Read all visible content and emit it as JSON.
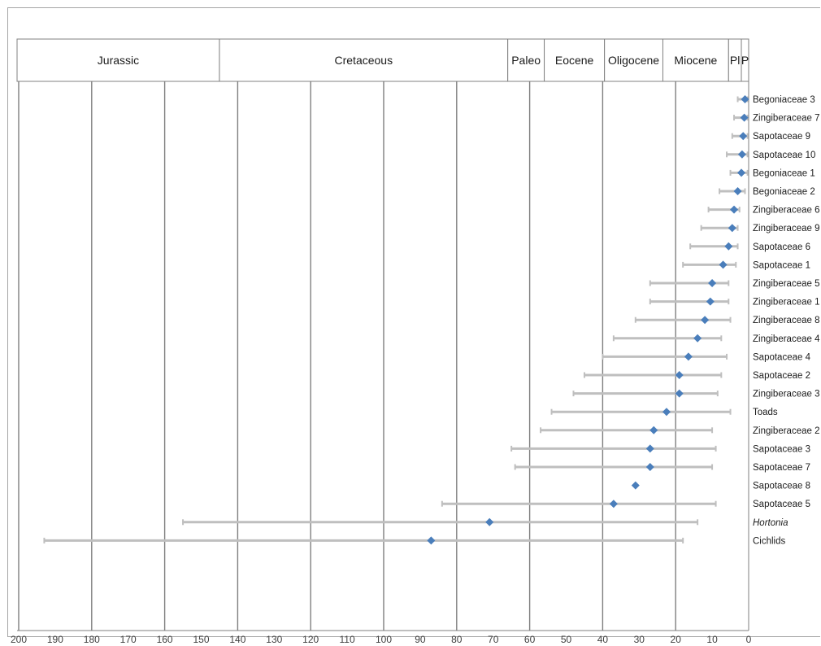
{
  "chart_data": {
    "type": "scatter",
    "x_axis": {
      "min": 0,
      "max": 200,
      "reversed": true,
      "ticks": [
        200,
        190,
        180,
        170,
        160,
        150,
        140,
        130,
        120,
        110,
        100,
        90,
        80,
        70,
        60,
        50,
        40,
        30,
        20,
        10,
        0
      ]
    },
    "periods": [
      {
        "name": "Jurassic",
        "start": 201,
        "end": 145
      },
      {
        "name": "Cretaceous",
        "start": 145,
        "end": 66
      },
      {
        "name": "Paleo",
        "start": 66,
        "end": 56
      },
      {
        "name": "Eocene",
        "start": 56,
        "end": 39.5
      },
      {
        "name": "Oligocene",
        "start": 39.5,
        "end": 23.5
      },
      {
        "name": "Miocene",
        "start": 23.5,
        "end": 5.5
      },
      {
        "name": "Pl",
        "start": 5.5,
        "end": 2
      },
      {
        "name": "P",
        "start": 2,
        "end": 0
      }
    ],
    "gridlines": [
      200,
      180,
      160,
      140,
      120,
      100,
      80,
      60,
      40,
      20
    ],
    "taxa": [
      {
        "label": "Begoniaceae 3",
        "italic": false,
        "value": 1.0,
        "low": 0.3,
        "high": 3.0
      },
      {
        "label": "Zingiberaceae 7",
        "italic": false,
        "value": 1.2,
        "low": 0.3,
        "high": 4.0
      },
      {
        "label": "Sapotaceae 9",
        "italic": false,
        "value": 1.5,
        "low": 0.3,
        "high": 4.5
      },
      {
        "label": "Sapotaceae 10",
        "italic": false,
        "value": 1.8,
        "low": 0.3,
        "high": 6.0
      },
      {
        "label": "Begoniaceae 1",
        "italic": false,
        "value": 2.0,
        "low": 0.3,
        "high": 5.0
      },
      {
        "label": "Begoniaceae 2",
        "italic": false,
        "value": 3.0,
        "low": 1.0,
        "high": 8.0
      },
      {
        "label": "Zingiberaceae 6",
        "italic": false,
        "value": 4.0,
        "low": 2.5,
        "high": 11.0
      },
      {
        "label": "Zingiberaceae 9",
        "italic": false,
        "value": 4.5,
        "low": 3.0,
        "high": 13.0
      },
      {
        "label": "Sapotaceae 6",
        "italic": false,
        "value": 5.5,
        "low": 3.0,
        "high": 16.0
      },
      {
        "label": "Sapotaceae 1",
        "italic": false,
        "value": 7.0,
        "low": 3.5,
        "high": 18.0
      },
      {
        "label": "Zingiberaceae 5",
        "italic": false,
        "value": 10.0,
        "low": 5.5,
        "high": 27.0
      },
      {
        "label": "Zingiberaceae 1",
        "italic": false,
        "value": 10.5,
        "low": 5.5,
        "high": 27.0
      },
      {
        "label": "Zingiberaceae 8",
        "italic": false,
        "value": 12.0,
        "low": 5.0,
        "high": 31.0
      },
      {
        "label": "Zingiberaceae 4",
        "italic": false,
        "value": 14.0,
        "low": 7.5,
        "high": 37.0
      },
      {
        "label": "Sapotaceae 4",
        "italic": false,
        "value": 16.5,
        "low": 6.0,
        "high": 40.0
      },
      {
        "label": "Sapotaceae 2",
        "italic": false,
        "value": 19.0,
        "low": 7.5,
        "high": 45.0
      },
      {
        "label": "Zingiberaceae 3",
        "italic": false,
        "value": 19.0,
        "low": 8.5,
        "high": 48.0
      },
      {
        "label": "Toads",
        "italic": false,
        "value": 22.5,
        "low": 5.0,
        "high": 54.0
      },
      {
        "label": "Zingiberaceae 2",
        "italic": false,
        "value": 26.0,
        "low": 10.0,
        "high": 57.0
      },
      {
        "label": "Sapotaceae 3",
        "italic": false,
        "value": 27.0,
        "low": 9.0,
        "high": 65.0
      },
      {
        "label": "Sapotaceae 7",
        "italic": false,
        "value": 27.0,
        "low": 10.0,
        "high": 64.0
      },
      {
        "label": "Sapotaceae 8",
        "italic": false,
        "value": 31.0,
        "low": null,
        "high": null
      },
      {
        "label": "Sapotaceae 5",
        "italic": false,
        "value": 37.0,
        "low": 9.0,
        "high": 84.0
      },
      {
        "label": "Hortonia",
        "italic": true,
        "value": 71.0,
        "low": 14.0,
        "high": 155.0
      },
      {
        "label": "Cichlids",
        "italic": false,
        "value": 87.0,
        "low": 18.0,
        "high": 193.0
      }
    ],
    "colors": {
      "marker": "#4a7ebb",
      "errorbar": "#bfbfbf",
      "grid": "#7f7f7f",
      "border": "#808080"
    }
  }
}
